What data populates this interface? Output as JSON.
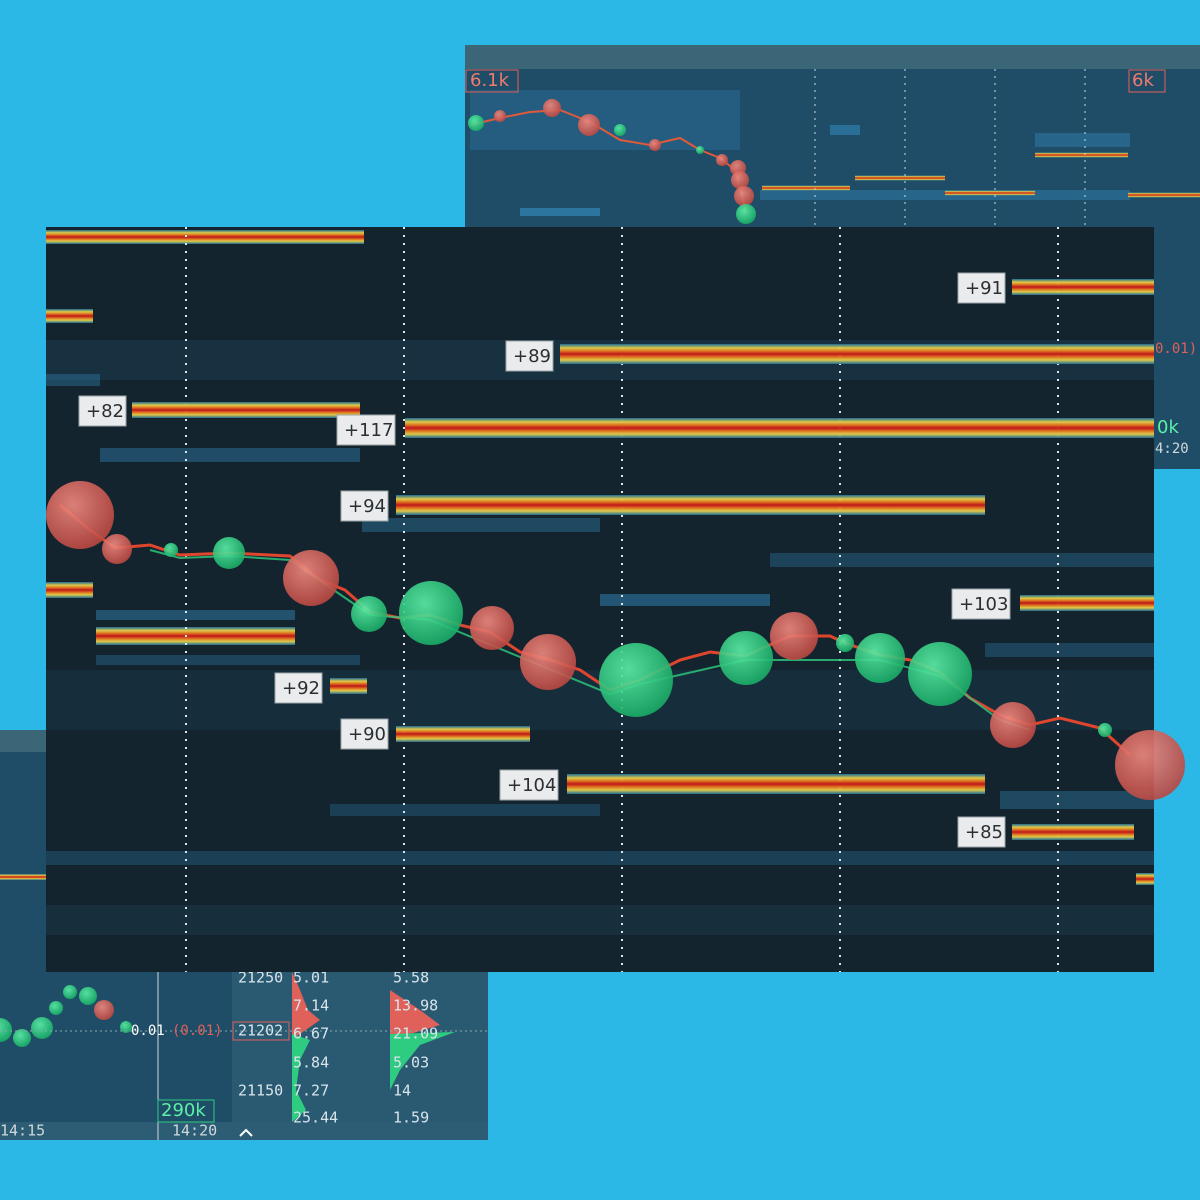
{
  "top_panel": {
    "high_label": "6.1k",
    "right_label": "6k",
    "edge_texts": [
      "0.01)",
      "0k",
      "4:20"
    ]
  },
  "main_panel": {
    "levels": [
      "+91",
      "+89",
      "+82",
      "+117",
      "+94",
      "+103",
      "+92",
      "+90",
      "+104",
      "+85"
    ]
  },
  "bottom_panel": {
    "prices": [
      "21250",
      "21202",
      "21150"
    ],
    "left_column": [
      "5.01",
      "7.14",
      "6.67",
      "5.84",
      "7.27",
      "25.44"
    ],
    "right_column": [
      "5.58",
      "13.98",
      "21.09",
      "5.03",
      "14",
      "1.59"
    ],
    "last_price": "0.01",
    "change": "(0.01)",
    "volume": "290k",
    "times": [
      "14:15",
      "14:20"
    ]
  }
}
